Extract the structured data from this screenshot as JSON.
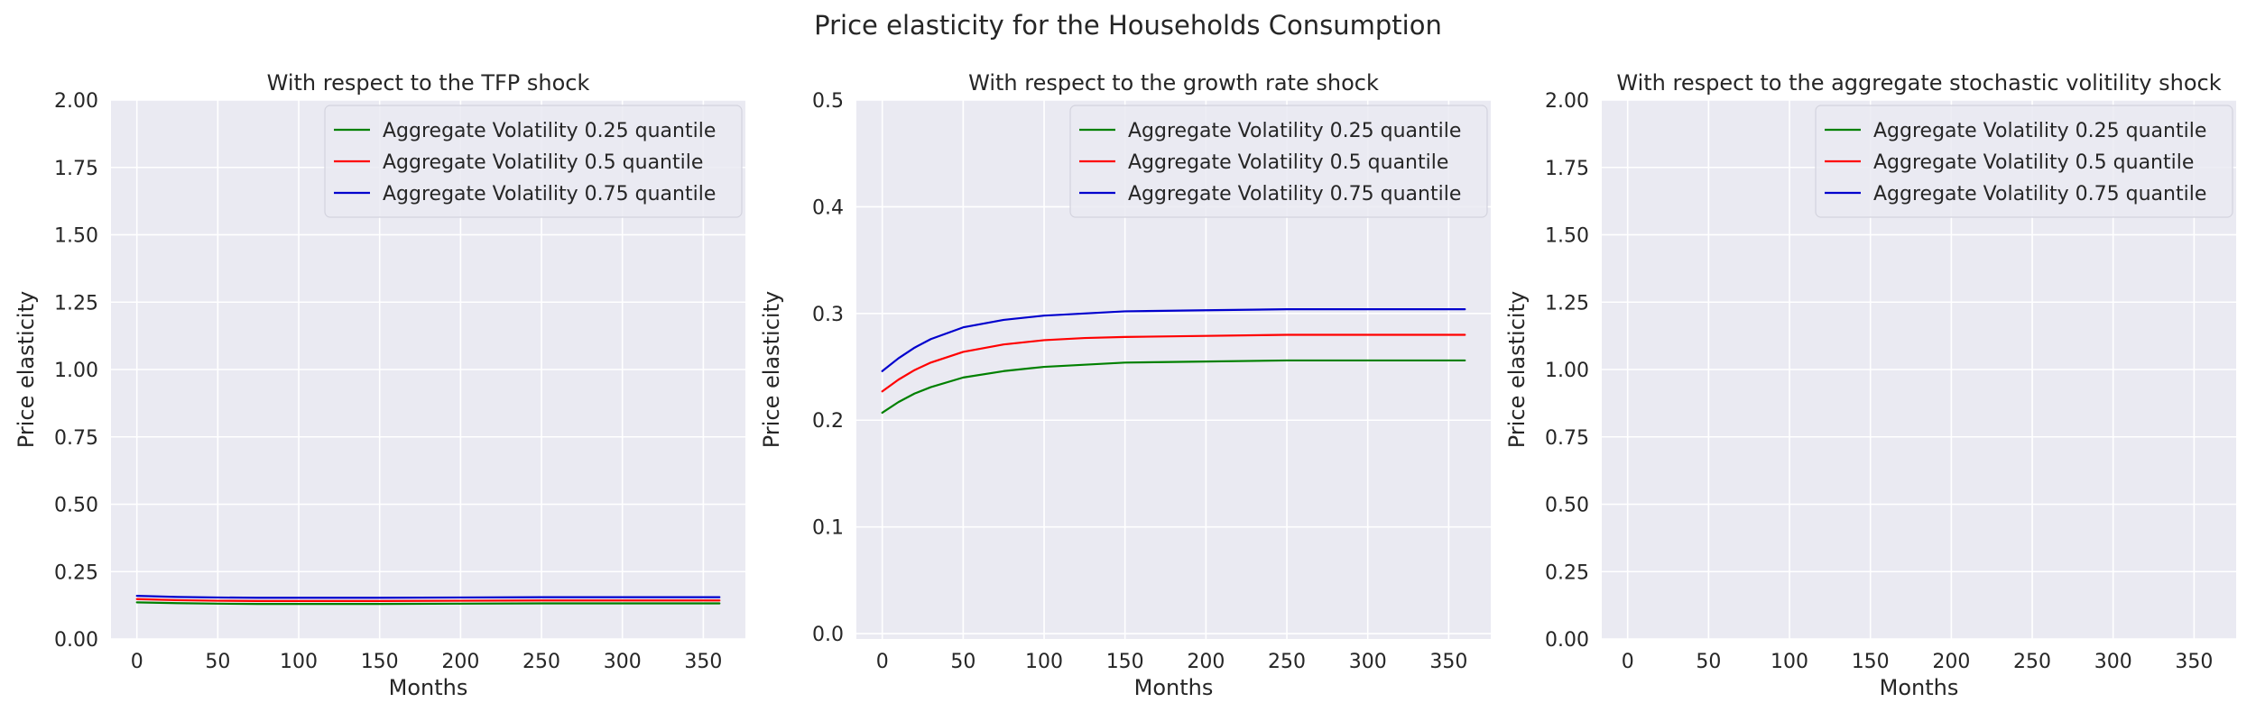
{
  "figure": {
    "title": "Price elasticity for the Households Consumption",
    "background": "#ffffff",
    "axes_facecolor": "#eaeaf2",
    "grid_color": "#ffffff",
    "text_color": "#262626"
  },
  "chart_data": [
    {
      "type": "line",
      "title": "With respect to the TFP shock",
      "xlabel": "Months",
      "ylabel": "Price elasticity",
      "xlim": [
        -16,
        376
      ],
      "ylim": [
        0,
        2.0
      ],
      "xticks": [
        0,
        50,
        100,
        150,
        200,
        250,
        300,
        350
      ],
      "yticks": [
        0.0,
        0.25,
        0.5,
        0.75,
        1.0,
        1.25,
        1.5,
        1.75,
        2.0
      ],
      "ytick_labels": [
        "0.00",
        "0.25",
        "0.50",
        "0.75",
        "1.00",
        "1.25",
        "1.50",
        "1.75",
        "2.00"
      ],
      "grid": true,
      "legend_position": "top-right",
      "series": [
        {
          "name": "Aggregate Volatility 0.25 quantile",
          "color": "#008000",
          "x": [
            0,
            25,
            50,
            75,
            100,
            150,
            200,
            250,
            300,
            360
          ],
          "y": [
            0.136,
            0.133,
            0.131,
            0.13,
            0.13,
            0.13,
            0.131,
            0.132,
            0.132,
            0.132
          ]
        },
        {
          "name": "Aggregate Volatility 0.5 quantile",
          "color": "#ff0000",
          "x": [
            0,
            25,
            50,
            75,
            100,
            150,
            200,
            250,
            300,
            360
          ],
          "y": [
            0.148,
            0.144,
            0.142,
            0.141,
            0.141,
            0.141,
            0.142,
            0.143,
            0.143,
            0.143
          ]
        },
        {
          "name": "Aggregate Volatility 0.75 quantile",
          "color": "#0000cd",
          "x": [
            0,
            25,
            50,
            75,
            100,
            150,
            200,
            250,
            300,
            360
          ],
          "y": [
            0.16,
            0.156,
            0.154,
            0.153,
            0.153,
            0.153,
            0.154,
            0.155,
            0.155,
            0.155
          ]
        }
      ]
    },
    {
      "type": "line",
      "title": "With respect to the growth rate shock",
      "xlabel": "Months",
      "ylabel": "Price elasticity",
      "xlim": [
        -16,
        376
      ],
      "ylim": [
        -0.005,
        0.5
      ],
      "xticks": [
        0,
        50,
        100,
        150,
        200,
        250,
        300,
        350
      ],
      "yticks": [
        0.0,
        0.1,
        0.2,
        0.3,
        0.4,
        0.5
      ],
      "ytick_labels": [
        "0.0",
        "0.1",
        "0.2",
        "0.3",
        "0.4",
        "0.5"
      ],
      "grid": true,
      "legend_position": "top-right",
      "series": [
        {
          "name": "Aggregate Volatility 0.25 quantile",
          "color": "#008000",
          "x": [
            0,
            10,
            20,
            30,
            50,
            75,
            100,
            125,
            150,
            200,
            250,
            300,
            360
          ],
          "y": [
            0.207,
            0.217,
            0.225,
            0.231,
            0.24,
            0.246,
            0.25,
            0.252,
            0.254,
            0.255,
            0.256,
            0.256,
            0.256
          ]
        },
        {
          "name": "Aggregate Volatility 0.5 quantile",
          "color": "#ff0000",
          "x": [
            0,
            10,
            20,
            30,
            50,
            75,
            100,
            125,
            150,
            200,
            250,
            300,
            360
          ],
          "y": [
            0.227,
            0.238,
            0.247,
            0.254,
            0.264,
            0.271,
            0.275,
            0.277,
            0.278,
            0.279,
            0.28,
            0.28,
            0.28
          ]
        },
        {
          "name": "Aggregate Volatility 0.75 quantile",
          "color": "#0000cd",
          "x": [
            0,
            10,
            20,
            30,
            50,
            75,
            100,
            125,
            150,
            200,
            250,
            300,
            360
          ],
          "y": [
            0.246,
            0.258,
            0.268,
            0.276,
            0.287,
            0.294,
            0.298,
            0.3,
            0.302,
            0.303,
            0.304,
            0.304,
            0.304
          ]
        }
      ]
    },
    {
      "type": "line",
      "title": "With respect to the aggregate stochastic volitility shock",
      "xlabel": "Months",
      "ylabel": "Price elasticity",
      "xlim": [
        -16,
        376
      ],
      "ylim": [
        0,
        2.0
      ],
      "xticks": [
        0,
        50,
        100,
        150,
        200,
        250,
        300,
        350
      ],
      "yticks": [
        0.0,
        0.25,
        0.5,
        0.75,
        1.0,
        1.25,
        1.5,
        1.75,
        2.0
      ],
      "ytick_labels": [
        "0.00",
        "0.25",
        "0.50",
        "0.75",
        "1.00",
        "1.25",
        "1.50",
        "1.75",
        "2.00"
      ],
      "grid": true,
      "legend_position": "top-right",
      "series": [
        {
          "name": "Aggregate Volatility 0.25 quantile",
          "color": "#008000",
          "x": [],
          "y": []
        },
        {
          "name": "Aggregate Volatility 0.5 quantile",
          "color": "#ff0000",
          "x": [],
          "y": []
        },
        {
          "name": "Aggregate Volatility 0.75 quantile",
          "color": "#0000cd",
          "x": [],
          "y": []
        }
      ]
    }
  ]
}
